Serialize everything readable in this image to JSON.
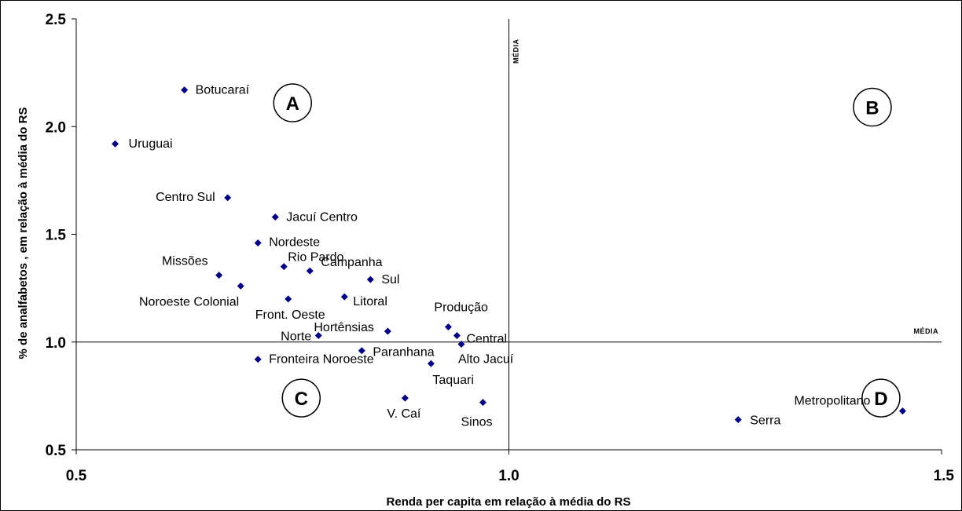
{
  "chart_data": {
    "type": "scatter",
    "xlabel": "Renda per capita em relação à média do RS",
    "ylabel": "% de analfabetos , em relação à média do RS",
    "xlim": [
      0.5,
      1.5
    ],
    "ylim": [
      0.5,
      2.5
    ],
    "x_ticks": [
      "0.5",
      "1.0",
      "1.5"
    ],
    "y_ticks": [
      "0.5",
      "1.0",
      "1.5",
      "2.0",
      "2.5"
    ],
    "grid": false,
    "marker_color": "#000080",
    "reference_lines": {
      "vertical": {
        "x": 1.0,
        "label": "MÉDIA"
      },
      "horizontal": {
        "y": 1.0,
        "label": "MÉDIA"
      }
    },
    "quadrant_labels": [
      {
        "text": "A",
        "x": 0.75,
        "y": 2.11
      },
      {
        "text": "B",
        "x": 1.42,
        "y": 2.09
      },
      {
        "text": "C",
        "x": 0.76,
        "y": 0.74
      },
      {
        "text": "D",
        "x": 1.43,
        "y": 0.74
      }
    ],
    "points": [
      {
        "label": "Botucaraí",
        "x": 0.625,
        "y": 2.17
      },
      {
        "label": "Uruguai",
        "x": 0.545,
        "y": 1.92
      },
      {
        "label": "Centro Sul",
        "x": 0.675,
        "y": 1.67
      },
      {
        "label": "Jacuí Centro",
        "x": 0.73,
        "y": 1.58
      },
      {
        "label": "Nordeste",
        "x": 0.71,
        "y": 1.46
      },
      {
        "label": "Rio Pardo",
        "x": 0.74,
        "y": 1.35
      },
      {
        "label": "Campanha",
        "x": 0.77,
        "y": 1.33
      },
      {
        "label": "Missões",
        "x": 0.665,
        "y": 1.31
      },
      {
        "label": "Sul",
        "x": 0.84,
        "y": 1.29
      },
      {
        "label": "Noroeste Colonial",
        "x": 0.69,
        "y": 1.26
      },
      {
        "label": "Litoral",
        "x": 0.81,
        "y": 1.21
      },
      {
        "label": "Front. Oeste",
        "x": 0.745,
        "y": 1.2
      },
      {
        "label": "Produção",
        "x": 0.93,
        "y": 1.07
      },
      {
        "label": "Hortênsias",
        "x": 0.86,
        "y": 1.05
      },
      {
        "label": "Norte",
        "x": 0.78,
        "y": 1.03
      },
      {
        "label": "Central",
        "x": 0.94,
        "y": 1.03
      },
      {
        "label": "Alto Jacuí",
        "x": 0.945,
        "y": 0.99
      },
      {
        "label": "Paranhana",
        "x": 0.83,
        "y": 0.96
      },
      {
        "label": "Fronteira Noroeste",
        "x": 0.71,
        "y": 0.92
      },
      {
        "label": "Taquari",
        "x": 0.91,
        "y": 0.9
      },
      {
        "label": "V. Caí",
        "x": 0.88,
        "y": 0.74
      },
      {
        "label": "Sinos",
        "x": 0.97,
        "y": 0.72
      },
      {
        "label": "Serra",
        "x": 1.265,
        "y": 0.64
      },
      {
        "label": "Metropolitano",
        "x": 1.455,
        "y": 0.68
      }
    ]
  }
}
